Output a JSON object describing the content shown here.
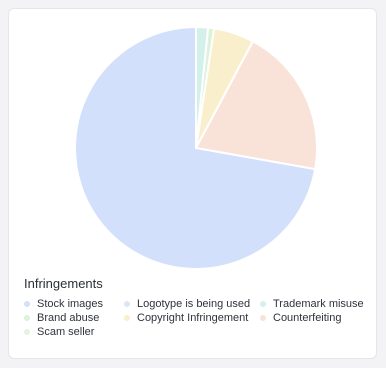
{
  "chart_data": {
    "type": "pie",
    "title": "",
    "legend_title": "Infringements",
    "legend_position": "bottom",
    "slices": [
      {
        "label": "Stock images",
        "value": 72.2,
        "color": "#d3e0fb"
      },
      {
        "label": "Logotype is being used",
        "value": 0.0,
        "color": "#dbe6f5"
      },
      {
        "label": "Trademark misuse",
        "value": 1.6,
        "color": "#d2f1ea"
      },
      {
        "label": "Brand abuse",
        "value": 0.8,
        "color": "#dcf2dc"
      },
      {
        "label": "Copyright Infringement",
        "value": 5.4,
        "color": "#faefcc"
      },
      {
        "label": "Counterfeiting",
        "value": 20.0,
        "color": "#f9e3d8"
      },
      {
        "label": "Scam seller",
        "value": 0.0,
        "color": "#e2f4de"
      }
    ]
  }
}
